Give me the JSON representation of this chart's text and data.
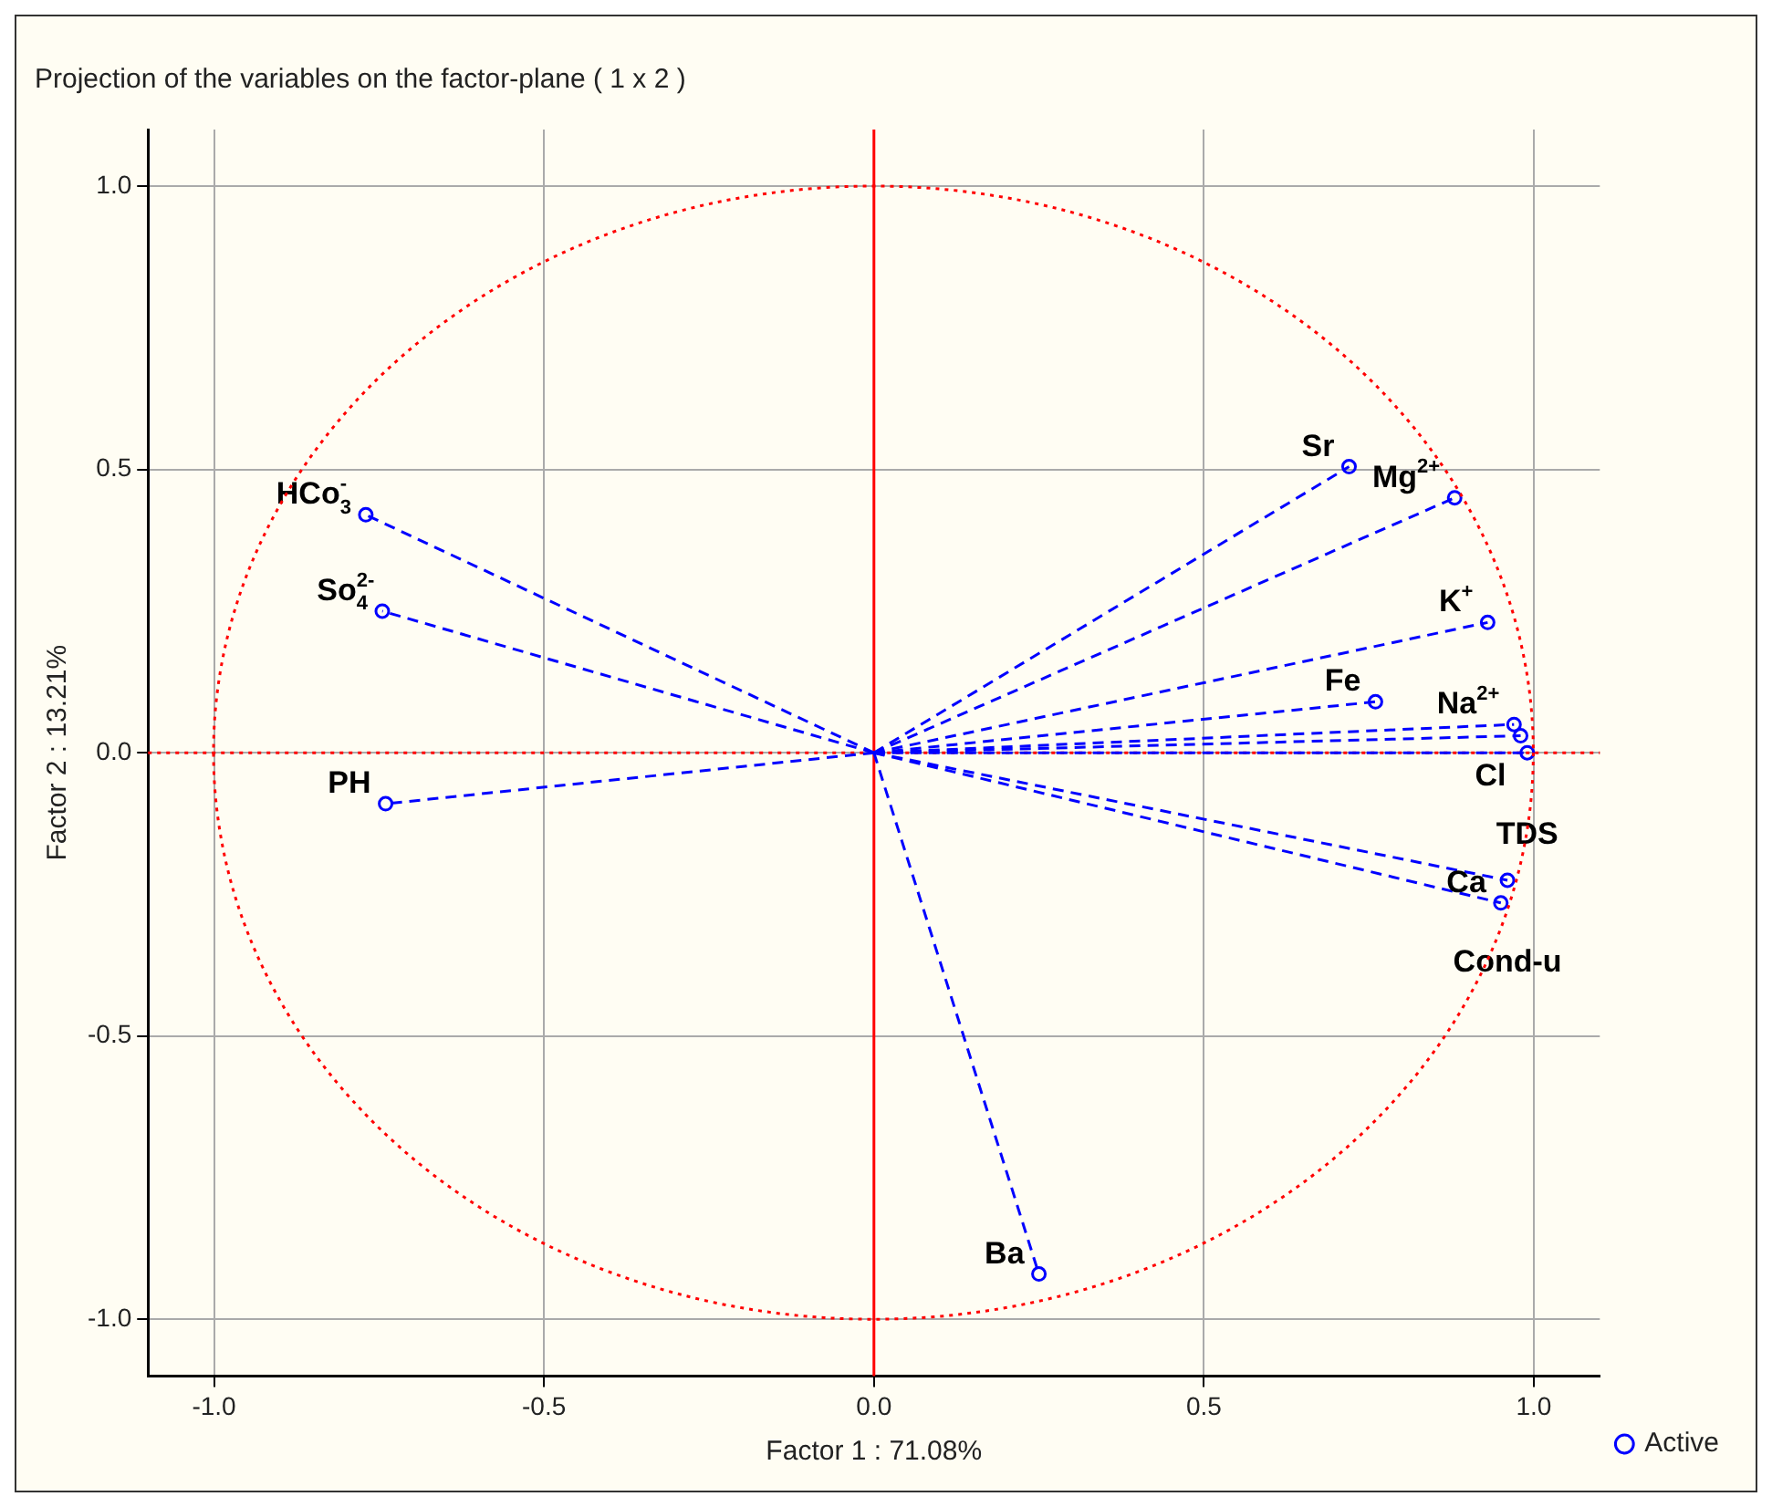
{
  "chart_data": {
    "type": "scatter",
    "title": "Projection of the variables on the factor-plane ( 1 x 2 )",
    "xlabel": "Factor 1 : 71.08%",
    "ylabel": "Factor 2 : 13.21%",
    "series": [
      {
        "name": "Active",
        "color": "#0000ff",
        "x": [
          0.72,
          0.88,
          0.93,
          0.76,
          0.97,
          0.98,
          0.99,
          0.96,
          0.95,
          0.25,
          -0.77,
          -0.745,
          -0.74
        ],
        "values": [
          0.505,
          0.45,
          0.23,
          0.09,
          0.05,
          0.03,
          0.0,
          -0.225,
          -0.265,
          -0.92,
          0.42,
          0.25,
          -0.09
        ]
      }
    ],
    "annotations": [
      {
        "text": "Sr",
        "x": 0.72,
        "y": 0.505
      },
      {
        "text": "Mg$^{2+}$",
        "x": 0.88,
        "y": 0.45
      },
      {
        "text": "K$^{+}$",
        "x": 0.93,
        "y": 0.23
      },
      {
        "text": "Fe",
        "x": 0.76,
        "y": 0.09
      },
      {
        "text": "Na$^{2+}$",
        "x": 0.97,
        "y": 0.05
      },
      {
        "text": "Cl",
        "x": 0.98,
        "y": 0.03
      },
      {
        "text": "TDS",
        "x": 0.99,
        "y": 0.0
      },
      {
        "text": "Cond-u",
        "x": 0.96,
        "y": -0.225
      },
      {
        "text": "Ca",
        "x": 0.95,
        "y": -0.265
      },
      {
        "text": "Ba",
        "x": 0.25,
        "y": -0.92
      },
      {
        "text": "HCo$_{3}$$^{-}$",
        "x": -0.77,
        "y": 0.42
      },
      {
        "text": "So$_{4}$$^{2-}$",
        "x": -0.745,
        "y": 0.25
      },
      {
        "text": "PH",
        "x": -0.74,
        "y": -0.09
      }
    ],
    "ref_lines": [
      {
        "axis": "x",
        "value": 0,
        "color": "#ff0000",
        "line_style": "solid"
      },
      {
        "axis": "y",
        "value": 0,
        "color": "#ff0000",
        "line_style": "dotted"
      }
    ],
    "xlim": [
      -1.1,
      1.1
    ],
    "ylim": [
      -1.1,
      1.1
    ],
    "xticks": [
      {
        "value": -1,
        "label": "-1.0"
      },
      {
        "value": -0.5,
        "label": "-0.5"
      },
      {
        "value": 0,
        "label": "0.0"
      },
      {
        "value": 0.5,
        "label": "0.5"
      },
      {
        "value": 1,
        "label": "1.0"
      }
    ],
    "yticks": [
      {
        "value": -1,
        "label": "-1.0"
      },
      {
        "value": -0.5,
        "label": "-0.5"
      },
      {
        "value": 0,
        "label": "0.0"
      },
      {
        "value": 0.5,
        "label": "0.5"
      },
      {
        "value": 1,
        "label": "1.0"
      }
    ],
    "grid": true,
    "legend": "bottom right",
    "marker": "circle",
    "line_style": "dashed"
  }
}
